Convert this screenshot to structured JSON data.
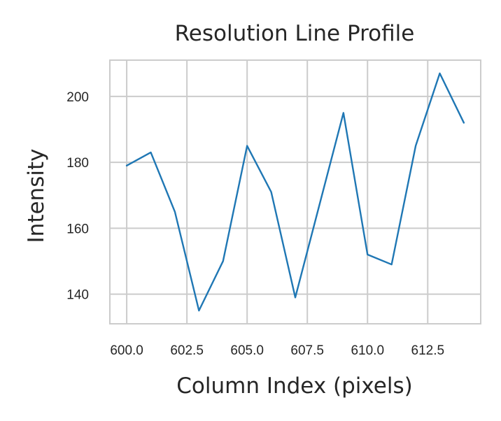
{
  "chart_data": {
    "type": "line",
    "title": "Resolution Line Profile",
    "xlabel": "Column Index (pixels)",
    "ylabel": "Intensity",
    "xlim": [
      599.3,
      614.7
    ],
    "ylim": [
      131,
      211
    ],
    "xticks": [
      600.0,
      602.5,
      605.0,
      607.5,
      610.0,
      612.5
    ],
    "xtick_labels": [
      "600.0",
      "602.5",
      "605.0",
      "607.5",
      "610.0",
      "612.5"
    ],
    "yticks": [
      140,
      160,
      180,
      200
    ],
    "ytick_labels": [
      "140",
      "160",
      "180",
      "200"
    ],
    "grid": true,
    "legend": "none",
    "series": [
      {
        "color": "#1f77b4",
        "x": [
          600,
          601,
          602,
          603,
          604,
          605,
          606,
          607,
          608,
          609,
          610,
          611,
          612,
          613,
          614
        ],
        "y": [
          179,
          183,
          165,
          135,
          150,
          185,
          171,
          139,
          167,
          195,
          152,
          149,
          185,
          207,
          192
        ]
      }
    ]
  }
}
